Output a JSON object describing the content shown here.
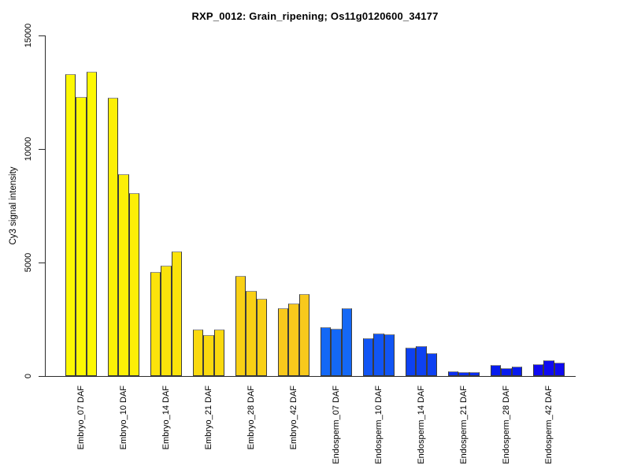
{
  "title": "RXP_0012: Grain_ripening; Os11g0120600_34177",
  "chart_data": {
    "type": "bar",
    "title": "RXP_0012: Grain_ripening; Os11g0120600_34177",
    "xlabel": "",
    "ylabel": "Cy3 signal intensity",
    "ylim": [
      0,
      15000
    ],
    "yticks": [
      0,
      5000,
      10000,
      15000
    ],
    "grid": false,
    "legend": "none",
    "bars_per_group": 3,
    "groups": [
      {
        "label": "Embryo_07 DAF",
        "color": "#FDF803",
        "values": [
          13300,
          12300,
          13400
        ]
      },
      {
        "label": "Embryo_10 DAF",
        "color": "#FCEF06",
        "values": [
          12250,
          8900,
          8050
        ]
      },
      {
        "label": "Embryo_14 DAF",
        "color": "#FBE30B",
        "values": [
          4600,
          4850,
          5500
        ]
      },
      {
        "label": "Embryo_21 DAF",
        "color": "#FAD90F",
        "values": [
          2050,
          1800,
          2050
        ]
      },
      {
        "label": "Embryo_28 DAF",
        "color": "#F9D015",
        "values": [
          4400,
          3750,
          3400
        ]
      },
      {
        "label": "Embryo_42 DAF",
        "color": "#F8C91C",
        "values": [
          3000,
          3200,
          3600
        ]
      },
      {
        "label": "Endosperm_07 DAF",
        "color": "#1468F6",
        "values": [
          2150,
          2080,
          2980
        ]
      },
      {
        "label": "Endosperm_10 DAF",
        "color": "#1155F4",
        "values": [
          1670,
          1870,
          1850
        ]
      },
      {
        "label": "Endosperm_14 DAF",
        "color": "#0E41F2",
        "values": [
          1250,
          1320,
          1000
        ]
      },
      {
        "label": "Endosperm_21 DAF",
        "color": "#0B2EF0",
        "values": [
          210,
          180,
          180
        ]
      },
      {
        "label": "Endosperm_28 DAF",
        "color": "#071BEE",
        "values": [
          480,
          330,
          410
        ]
      },
      {
        "label": "Endosperm_42 DAF",
        "color": "#0F0AF0",
        "values": [
          520,
          700,
          590
        ]
      }
    ],
    "bar_border_color": "#3c3c3c",
    "axis_color": "#2b2b2b",
    "text_color": "#000000"
  }
}
